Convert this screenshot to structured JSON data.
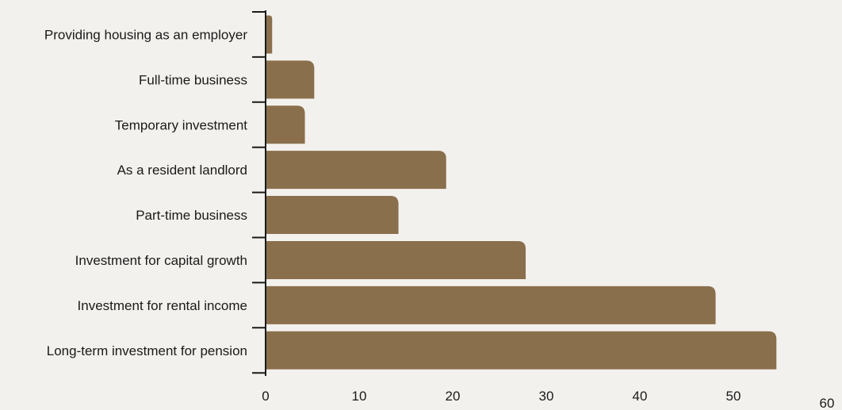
{
  "chart_data": {
    "type": "bar",
    "orientation": "horizontal",
    "categories": [
      "Providing housing as an employer",
      "Full-time business",
      "Temporary investment",
      "As a resident landlord",
      "Part-time business",
      "Investment for capital growth",
      "Investment for rental income",
      "Long-term investment for pension"
    ],
    "values": [
      0.7,
      5.2,
      4.2,
      19.3,
      14.2,
      27.8,
      48.1,
      54.6
    ],
    "xlim": [
      0,
      60
    ],
    "xticks": [
      0,
      10,
      20,
      30,
      40,
      50,
      60
    ],
    "title": "",
    "xlabel": "",
    "ylabel": "",
    "grid": false,
    "bar_color": "#8a6f4d",
    "axis_color": "#1a1a1a",
    "background": "#f3f1ed"
  }
}
